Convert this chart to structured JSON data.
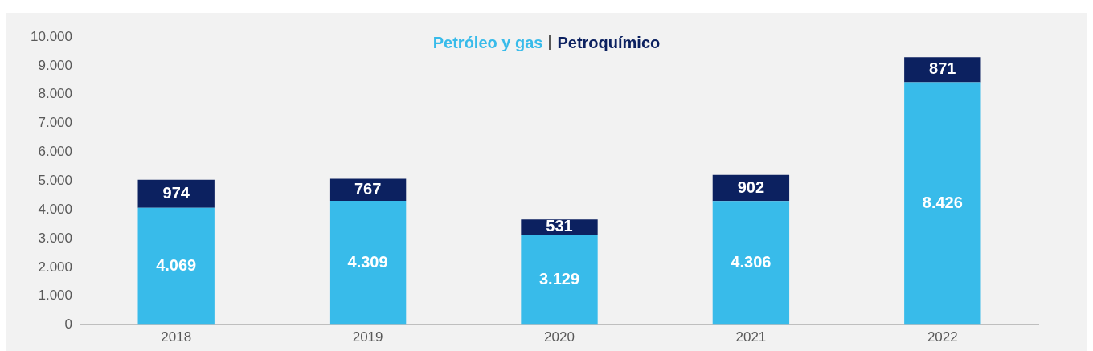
{
  "chart_data": {
    "type": "bar",
    "stacked": true,
    "legend": "top",
    "grid": false,
    "categories": [
      "2018",
      "2019",
      "2020",
      "2021",
      "2022"
    ],
    "series": [
      {
        "name": "Petróleo y gas",
        "color": "#38bbea",
        "values": [
          4069,
          4309,
          3129,
          4306,
          8426
        ],
        "value_labels": [
          "4.069",
          "4.309",
          "3.129",
          "4.306",
          "8.426"
        ]
      },
      {
        "name": "Petroquímico",
        "color": "#0c2160",
        "values": [
          974,
          767,
          531,
          902,
          871
        ],
        "value_labels": [
          "974",
          "767",
          "531",
          "902",
          "871"
        ]
      }
    ],
    "ylim": [
      0,
      10000
    ],
    "yticks": [
      {
        "value": 0,
        "label": "0"
      },
      {
        "value": 1000,
        "label": "1.000"
      },
      {
        "value": 2000,
        "label": "2.000"
      },
      {
        "value": 3000,
        "label": "3.000"
      },
      {
        "value": 4000,
        "label": "4.000"
      },
      {
        "value": 5000,
        "label": "5.000"
      },
      {
        "value": 6000,
        "label": "6.000"
      },
      {
        "value": 7000,
        "label": "7.000"
      },
      {
        "value": 8000,
        "label": "8.000"
      },
      {
        "value": 9000,
        "label": "9.000"
      },
      {
        "value": 10000,
        "label": "10.000"
      }
    ]
  }
}
